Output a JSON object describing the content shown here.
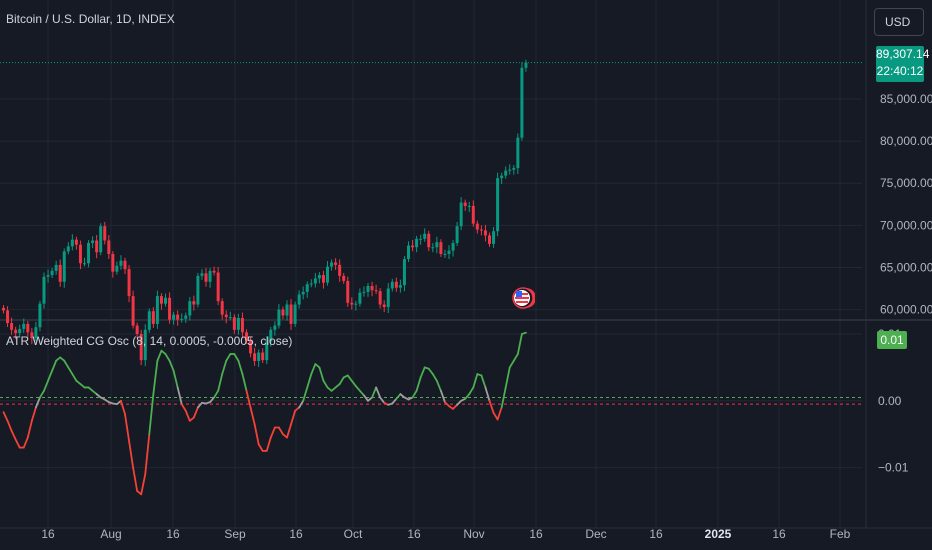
{
  "header": {
    "symbol_title": "Bitcoin / U.S. Dollar, 1D, INDEX",
    "currency_button": "USD"
  },
  "last_price": {
    "value": "89,307.14",
    "countdown": "22:40:12"
  },
  "indicator": {
    "title": "ATR Weighted CG Osc (8, 14, 0.0005, -0.0005, close)",
    "current_value": "0.01"
  },
  "colors": {
    "background": "#161a25",
    "up": "#089981",
    "down": "#f23645",
    "osc_up": "#4caf50",
    "osc_down": "#f44336",
    "osc_neutral": "#9e9e9e",
    "upper_level": "#4caf50",
    "lower_level": "#f23645"
  },
  "icons": {
    "event_marker": "us-flag-icon"
  },
  "chart_data": [
    {
      "type": "candlestick",
      "title": "Bitcoin / U.S. Dollar, 1D, INDEX",
      "x_ticks": [
        "16",
        "Aug",
        "16",
        "Sep",
        "16",
        "Oct",
        "16",
        "Nov",
        "16",
        "Dec",
        "16",
        "2025",
        "16",
        "Feb"
      ],
      "y_ticks": [
        "60,000.00",
        "65,000.00",
        "70,000.00",
        "75,000.00",
        "80,000.00",
        "85,000.00"
      ],
      "y_tick_values": [
        60000,
        65000,
        70000,
        75000,
        80000,
        85000
      ],
      "ylim": [
        59000,
        92000
      ],
      "last_price": 89307.14,
      "series": [
        {
          "name": "BTCUSD",
          "closes": [
            59900,
            58400,
            57600,
            57200,
            57700,
            58300,
            57300,
            56600,
            57900,
            60700,
            63900,
            64100,
            64600,
            65300,
            63300,
            66900,
            67500,
            68300,
            67700,
            65500,
            65500,
            67900,
            68200,
            66800,
            69900,
            68200,
            66600,
            64500,
            65200,
            65800,
            64800,
            61600,
            58100,
            57100,
            54000,
            57600,
            59800,
            58300,
            61600,
            60700,
            61400,
            58800,
            59400,
            58800,
            58900,
            59300,
            61000,
            60600,
            64000,
            64300,
            63300,
            64600,
            64400,
            61000,
            59400,
            59100,
            59100,
            57600,
            59000,
            57300,
            56300,
            54800,
            53900,
            54900,
            54000,
            56200,
            57600,
            58100,
            60000,
            59300,
            60600,
            58300,
            60600,
            61800,
            62100,
            63000,
            63100,
            63700,
            64100,
            63200,
            65100,
            65600,
            65300,
            64000,
            63400,
            60800,
            60600,
            60700,
            62000,
            62100,
            62800,
            62300,
            62200,
            60600,
            60300,
            62500,
            63300,
            62600,
            62900,
            66000,
            67600,
            67400,
            68400,
            68400,
            69000,
            67400,
            67400,
            68000,
            66600,
            66600,
            67000,
            67900,
            69900,
            72700,
            72300,
            72300,
            70200,
            69500,
            69400,
            68800,
            67800,
            69300,
            75600,
            75900,
            76500,
            76600,
            76800,
            80400,
            88700,
            89307
          ]
        }
      ]
    },
    {
      "type": "line",
      "title": "ATR Weighted CG Osc (8, 14, 0.0005, -0.0005, close)",
      "y_ticks": [
        "0.01",
        "0.00",
        "−0.01"
      ],
      "y_tick_values": [
        0.01,
        0.0,
        -0.01
      ],
      "ylim": [
        -0.0156,
        0.0118
      ],
      "levels": [
        {
          "name": "upper",
          "value": 0.0005
        },
        {
          "name": "lower",
          "value": -0.0005
        }
      ],
      "series": [
        {
          "name": "CG Osc",
          "values": [
            -0.0017,
            -0.003,
            -0.0045,
            -0.0058,
            -0.007,
            -0.007,
            -0.0055,
            -0.003,
            -0.001,
            0.0005,
            0.0015,
            0.003,
            0.0045,
            0.006,
            0.0065,
            0.006,
            0.005,
            0.004,
            0.003,
            0.0025,
            0.002,
            0.002,
            0.0015,
            0.001,
            0.0005,
            0.0002,
            -0.0002,
            -0.0004,
            -0.0005,
            0.0,
            -0.002,
            -0.006,
            -0.01,
            -0.0135,
            -0.014,
            -0.011,
            -0.005,
            0.001,
            0.006,
            0.0075,
            0.007,
            0.006,
            0.0045,
            0.002,
            -0.0005,
            -0.0015,
            -0.003,
            -0.0025,
            -0.001,
            -0.0003,
            -0.0004,
            -0.0002,
            0.0005,
            0.0015,
            0.004,
            0.006,
            0.007,
            0.007,
            0.006,
            0.004,
            0.0015,
            -0.001,
            -0.0035,
            -0.0065,
            -0.0075,
            -0.0075,
            -0.0055,
            -0.004,
            -0.004,
            -0.005,
            -0.0055,
            -0.0035,
            -0.0015,
            -0.001,
            0.0,
            0.002,
            0.004,
            0.0055,
            0.005,
            0.003,
            0.002,
            0.0015,
            0.002,
            0.0025,
            0.0035,
            0.0038,
            0.003,
            0.0022,
            0.0015,
            0.0008,
            0.0,
            0.0005,
            0.002,
            0.0005,
            -0.0003,
            -0.0006,
            -0.0004,
            0.0003,
            0.001,
            0.0005,
            0.0002,
            0.0005,
            0.0015,
            0.0035,
            0.005,
            0.0048,
            0.004,
            0.003,
            0.0015,
            -0.0002,
            -0.0008,
            -0.0012,
            -0.0006,
            0.0,
            0.0003,
            0.001,
            0.002,
            0.004,
            0.0038,
            0.002,
            0.0,
            -0.0018,
            -0.0028,
            -0.001,
            0.002,
            0.005,
            0.006,
            0.007,
            0.01,
            0.0102
          ]
        }
      ]
    }
  ]
}
